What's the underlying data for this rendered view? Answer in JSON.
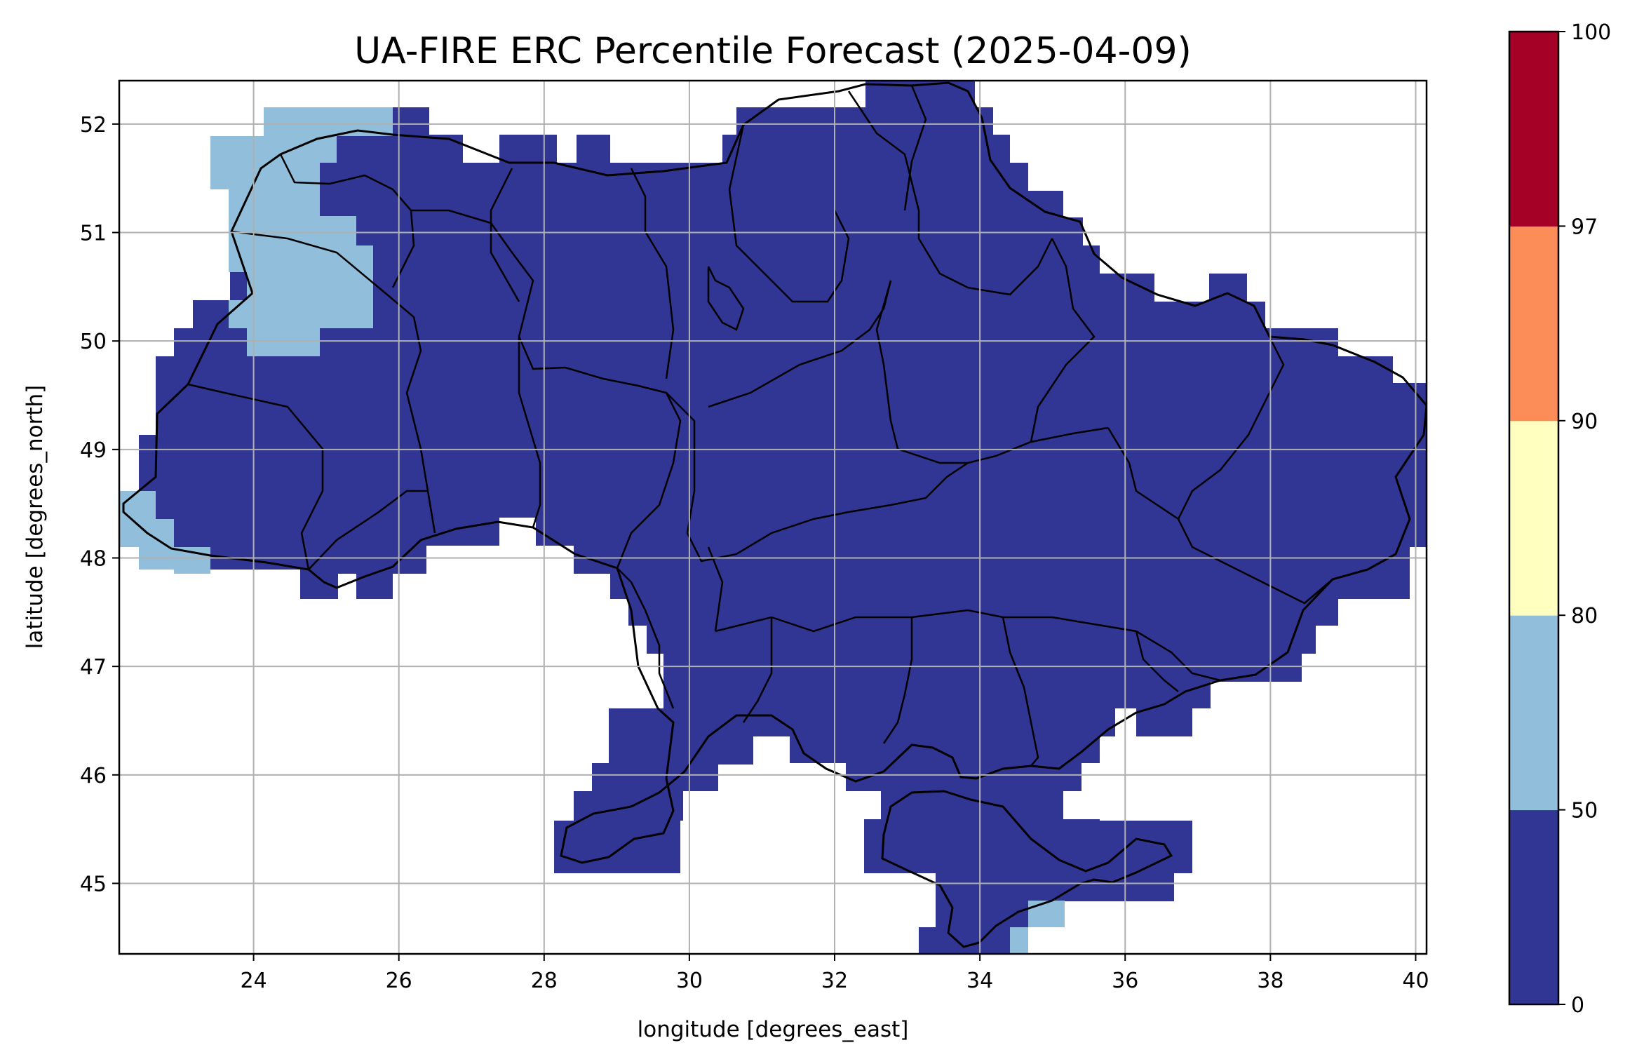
{
  "chart_data": {
    "type": "heatmap",
    "title": "UA-FIRE ERC Percentile Forecast (2025-04-09)",
    "xlabel": "longitude [degrees_east]",
    "ylabel": "latitude [degrees_north]",
    "xlim": [
      22.15,
      40.15
    ],
    "ylim": [
      44.35,
      52.4
    ],
    "xticks": [
      24,
      26,
      28,
      30,
      32,
      34,
      36,
      38,
      40
    ],
    "yticks": [
      45,
      46,
      47,
      48,
      49,
      50,
      51,
      52
    ],
    "grid": true,
    "colorbar": {
      "ticks": [
        0,
        50,
        80,
        90,
        97,
        100
      ],
      "bins": [
        {
          "range": [
            0,
            50
          ],
          "color": "#313695"
        },
        {
          "range": [
            50,
            80
          ],
          "color": "#91bfdb"
        },
        {
          "range": [
            80,
            90
          ],
          "color": "#ffffbf"
        },
        {
          "range": [
            90,
            97
          ],
          "color": "#fc8d59"
        },
        {
          "range": [
            97,
            100
          ],
          "color": "#a50026"
        }
      ]
    },
    "values": {
      "dominant_class": "0-50",
      "secondary_class": "50-80",
      "secondary_regions": [
        "northwest (Volyn)",
        "southwest (Zakarpattia)",
        "southern Crimea coast"
      ]
    }
  }
}
